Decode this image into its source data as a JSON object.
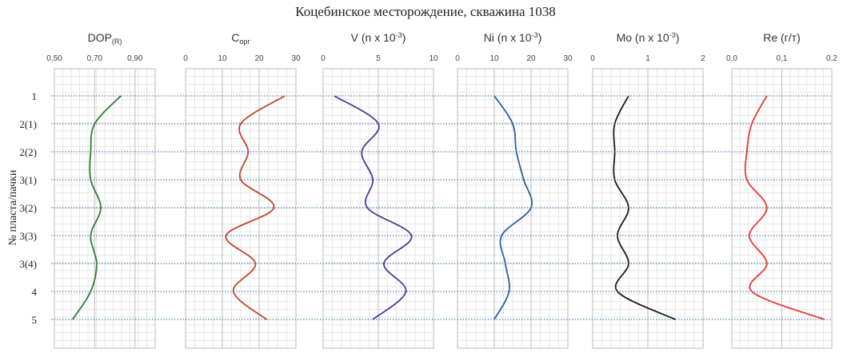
{
  "chart_data": {
    "type": "line",
    "title": "Коцебинское месторождение, скважина 1038",
    "ylabel": "№ пласта/пачки",
    "categories": [
      "1",
      "2(1)",
      "2(2)",
      "3(1)",
      "3(2)",
      "3(3)",
      "3(4)",
      "4",
      "5"
    ],
    "panels": [
      {
        "title": "DOP",
        "title_sub": "(R)",
        "color": "#2e7d32",
        "xlim": [
          0.5,
          1.0
        ],
        "ticks": [
          "0,50",
          "0,70",
          "0,90"
        ],
        "tick_values": [
          0.5,
          0.7,
          0.9
        ],
        "values": [
          0.83,
          0.7,
          0.68,
          0.68,
          0.73,
          0.68,
          0.71,
          0.68,
          0.59
        ]
      },
      {
        "title": "C",
        "title_sub": "орг",
        "color": "#c0462a",
        "xlim": [
          0,
          30
        ],
        "ticks": [
          "0",
          "10",
          "20",
          "30"
        ],
        "tick_values": [
          0,
          10,
          20,
          30
        ],
        "values": [
          27,
          15,
          17,
          15,
          24,
          11,
          19,
          13,
          22
        ]
      },
      {
        "title": "V (n x 10",
        "title_sup": "-3",
        "title_end": ")",
        "color": "#4b3a99",
        "xlim": [
          0,
          10
        ],
        "ticks": [
          "0",
          "5",
          "10"
        ],
        "tick_values": [
          0,
          5,
          10
        ],
        "values": [
          1,
          5,
          3.5,
          4.5,
          4,
          8,
          5.5,
          7.5,
          4.5
        ]
      },
      {
        "title": "Ni (n x 10",
        "title_sup": "-3",
        "title_end": ")",
        "color": "#2b5ea8",
        "xlim": [
          0,
          30
        ],
        "ticks": [
          "0",
          "10",
          "20",
          "30"
        ],
        "tick_values": [
          0,
          10,
          20,
          30
        ],
        "values": [
          10,
          15,
          16,
          18,
          20,
          12,
          13,
          14,
          10
        ]
      },
      {
        "title": "Mo (n x 10",
        "title_sup": "-3",
        "title_end": ")",
        "color": "#1a1a1a",
        "xlim": [
          0,
          2
        ],
        "ticks": [
          "0",
          "1",
          "2"
        ],
        "tick_values": [
          0,
          1,
          2
        ],
        "values": [
          0.65,
          0.4,
          0.4,
          0.4,
          0.65,
          0.45,
          0.65,
          0.45,
          1.5
        ]
      },
      {
        "title": "Re (г/т)",
        "color": "#e53935",
        "xlim": [
          0,
          0.2
        ],
        "ticks": [
          "0,0",
          "0,1",
          "0,2"
        ],
        "tick_values": [
          0,
          0.1,
          0.2
        ],
        "values": [
          0.07,
          0.04,
          0.03,
          0.03,
          0.07,
          0.035,
          0.07,
          0.04,
          0.185
        ]
      }
    ],
    "grid": true,
    "reference_lines": "dotted-blue"
  }
}
